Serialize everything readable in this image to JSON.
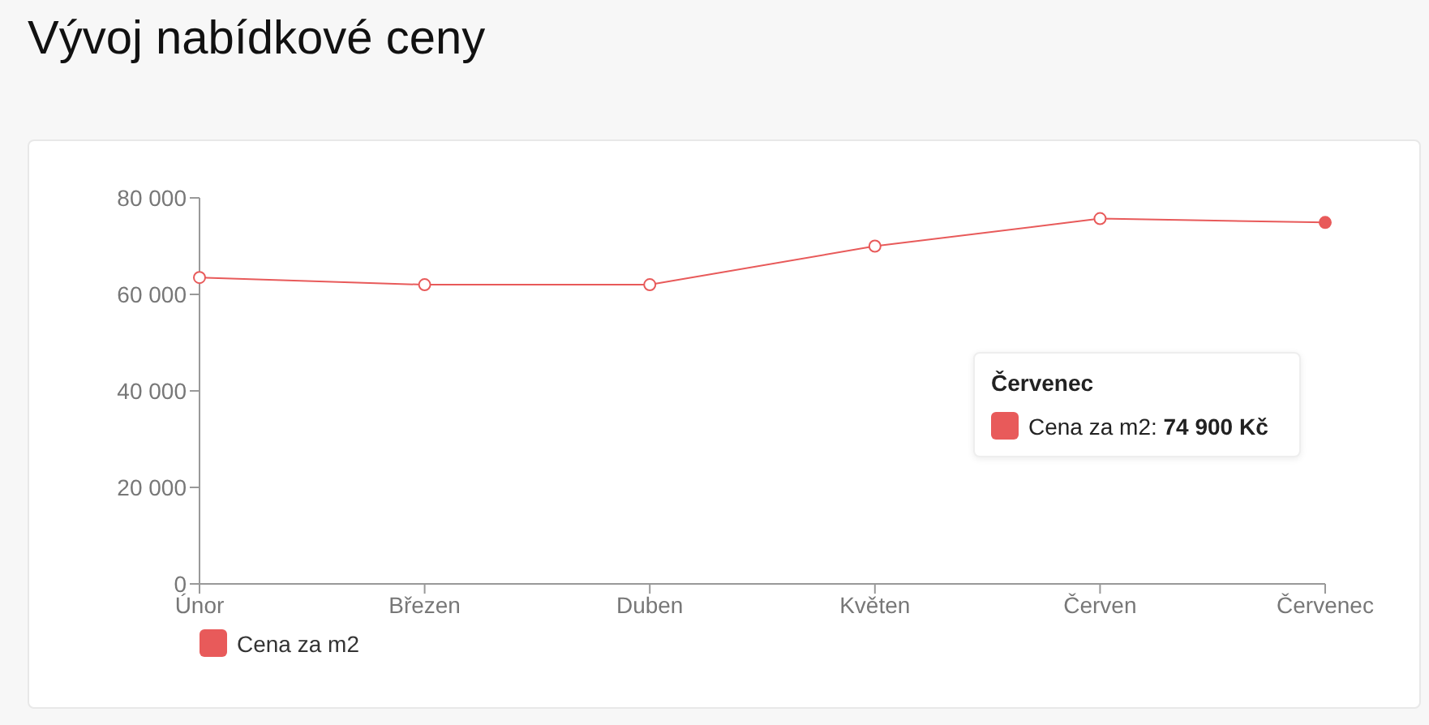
{
  "chart_data": {
    "type": "line",
    "title": "Vývoj nabídkové ceny",
    "categories": [
      "Únor",
      "Březen",
      "Duben",
      "Květen",
      "Červen",
      "Červenec"
    ],
    "series": [
      {
        "name": "Cena za m2",
        "color": "#e85a5a",
        "values": [
          63500,
          62000,
          62000,
          70000,
          75700,
          74900
        ]
      }
    ],
    "ylim": [
      0,
      80000
    ],
    "yticks": [
      0,
      {
        "value": 20000,
        "label": "20 000"
      },
      {
        "value": 40000,
        "label": "40 000"
      },
      {
        "value": 60000,
        "label": "60 000"
      },
      {
        "value": 80000,
        "label": "80 000"
      }
    ],
    "grid": false,
    "legend": "bottom left",
    "marker": "circle",
    "annotations": [
      "Červenec",
      "Cena za m2: 74 900 Kč"
    ]
  }
}
